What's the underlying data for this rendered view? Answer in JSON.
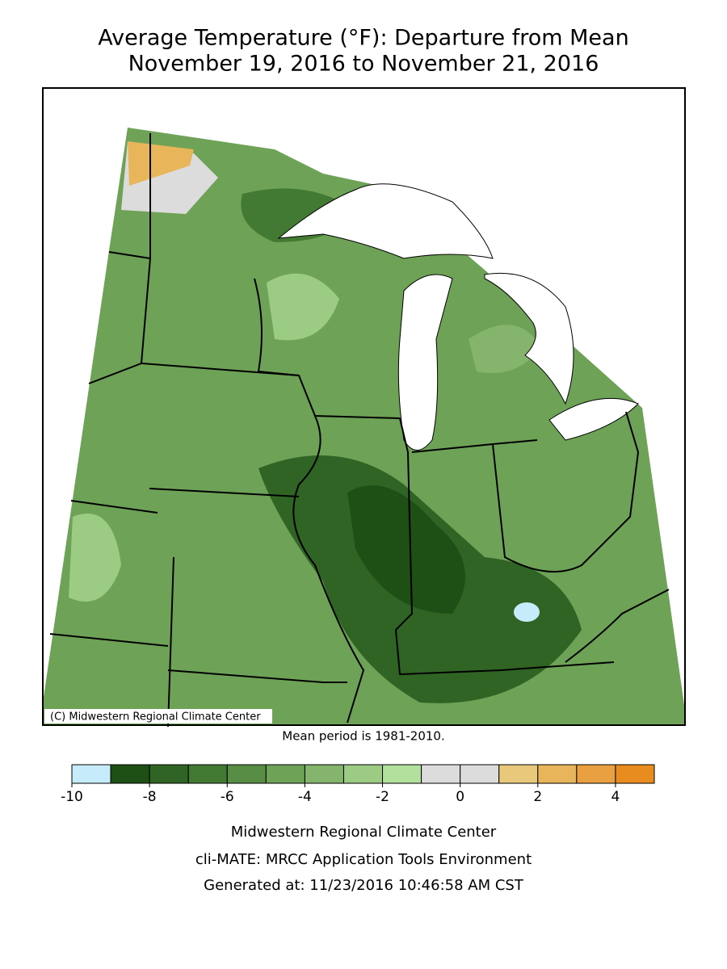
{
  "header": {
    "title": [
      "Average Temperature (°F): Departure from Mean",
      "November 19, 2016 to November 21, 2016"
    ]
  },
  "map": {
    "copyright": "(C) Midwestern Regional Climate Center",
    "note": "Mean period is 1981-2010."
  },
  "colorbar": {
    "lim": [
      -10,
      5
    ],
    "ticks": [
      -10,
      -8,
      -6,
      -4,
      -2,
      0,
      2,
      4
    ],
    "colors": [
      "#c6ecfb",
      "#1e5016",
      "#2f6425",
      "#437a33",
      "#588d45",
      "#6ea257",
      "#85b56c",
      "#9ccc84",
      "#b3e09c",
      "#dcdcdc",
      "#dcdcdc",
      "#e8c87a",
      "#e8b55a",
      "#e8a040",
      "#e88c20"
    ]
  },
  "footer": {
    "lines": [
      "Midwestern Regional Climate Center",
      "cli-MATE: MRCC Application Tools Environment",
      "Generated at: 11/23/2016 10:46:58 AM CST"
    ]
  }
}
